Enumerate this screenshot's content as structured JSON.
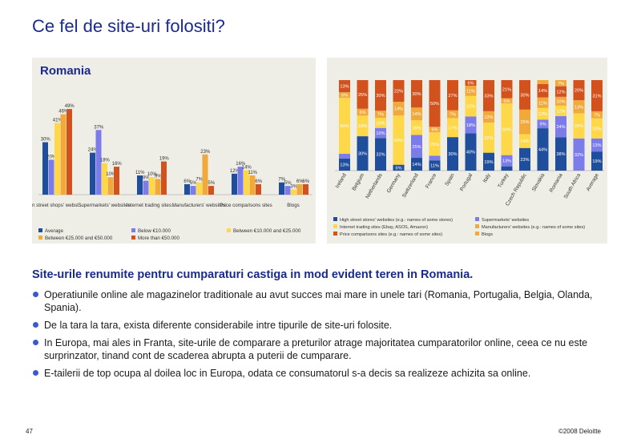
{
  "slide": {
    "title": "Ce fel de site-uri folositi?",
    "subtitle": "Site-urile renumite pentru cumparaturi castiga in mod evident teren in Romania.",
    "bullets": [
      "Operatiunile online ale magazinelor traditionale au avut succes mai mare in unele tari (Romania, Portugalia, Belgia, Olanda, Spania).",
      "De la tara la tara, exista diferente considerabile intre tipurile de site-uri folosite.",
      "In Europa, mai ales in Franta, site-urile de comparare a preturilor atrage majoritatea cumparatorilor online, ceea ce nu este surprinzator, tinand cont de scaderea abrupta a puterii de cumparare.",
      "E-tailerii de top ocupa al doilea loc in Europa, odata ce consumatorul s-a decis sa realizeze achizita sa online."
    ],
    "page_number": "47",
    "copyright": "©2008 Deloitte",
    "colors": {
      "title": "#1a2a8c",
      "bullet": "#3a5bd0",
      "panel_bg": "#eeede6"
    }
  },
  "chart_data": [
    {
      "type": "bar",
      "title": "Romania",
      "categories": [
        "In street shops' websites (e.g.: names of some stores)",
        "Supermarkets' websites",
        "Internet trading sites (Ebay, ASOS, Amazon)",
        "Manufacturers' websites",
        "Price comparisons sites",
        "Blogs"
      ],
      "series": [
        {
          "name": "Average",
          "color": "#1f4e9c",
          "values": [
            30,
            24,
            11,
            6,
            12,
            7
          ]
        },
        {
          "name": "Below €10.000",
          "color": "#7b7bea",
          "values": [
            20,
            37,
            8,
            5,
            16,
            5
          ]
        },
        {
          "name": "Between €10.000 and €25.000",
          "color": "#ffd84a",
          "values": [
            41,
            18,
            10,
            7,
            14,
            3
          ]
        },
        {
          "name": "Between €25.000 and €50.000",
          "color": "#f2a93b",
          "values": [
            46,
            10,
            9,
            23,
            11,
            6
          ]
        },
        {
          "name": "More than €50.000",
          "color": "#d2521e",
          "values": [
            49,
            16,
            19,
            5,
            6,
            6
          ]
        }
      ],
      "ylim": [
        0,
        55
      ]
    },
    {
      "type": "bar",
      "stacked": true,
      "categories": [
        "Ireland",
        "Belgium",
        "Netherlands",
        "Germany",
        "Switzerland",
        "France",
        "Spain",
        "Portugal",
        "Italy",
        "Turkey",
        "Czech Republic",
        "Slovakia",
        "Romania",
        "South Africa",
        "Average"
      ],
      "series": [
        {
          "name": "High street stores' websites (e.g.: names of some stores)",
          "color": "#1f4e9c",
          "values": [
            13,
            30,
            32,
            6,
            14,
            11,
            30,
            40,
            19,
            5,
            23,
            44,
            38,
            0,
            19
          ]
        },
        {
          "name": "Supermarkets' websites",
          "color": "#7b7bea",
          "values": [
            5,
            0,
            10,
            0,
            25,
            5,
            0,
            18,
            0,
            13,
            0,
            9,
            24,
            32,
            13
          ]
        },
        {
          "name": "Internet trading sites (Ebay, ASOS, Amazon)",
          "color": "#ffd84a",
          "values": [
            60,
            18,
            10,
            50,
            16,
            25,
            17,
            22,
            32,
            60,
            14,
            12,
            12,
            25,
            20
          ]
        },
        {
          "name": "Manufacturers' websites (e.g.: names of some sites)",
          "color": "#f2a93b",
          "values": [
            6,
            6,
            7,
            14,
            14,
            6,
            7,
            11,
            12,
            6,
            25,
            11,
            10,
            13,
            7
          ]
        },
        {
          "name": "Price comparisons sites (e.g.: names of some sites)",
          "color": "#d2521e",
          "values": [
            13,
            25,
            30,
            22,
            30,
            50,
            27,
            6,
            33,
            21,
            30,
            14,
            12,
            20,
            31
          ]
        },
        {
          "name": "Blogs",
          "color": "#f2a93b",
          "values": [
            0,
            0,
            0,
            0,
            0,
            0,
            0,
            0,
            0,
            0,
            0,
            4,
            7,
            0,
            0
          ]
        }
      ],
      "ylim": [
        0,
        100
      ]
    }
  ]
}
